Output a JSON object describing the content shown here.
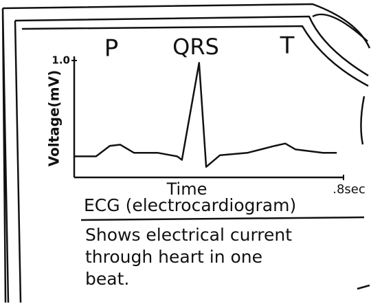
{
  "chart_data": {
    "type": "line",
    "title": "ECG (electrocardiogram)",
    "description": [
      "Shows electrical current",
      "through heart in one",
      "beat."
    ],
    "annotations": [
      "P",
      "QRS",
      "T"
    ],
    "ylabel": "Voltage(mV)",
    "xlabel": "Time",
    "x": [
      0,
      0.065,
      0.106,
      0.137,
      0.178,
      0.249,
      0.306,
      0.32,
      0.371,
      0.392,
      0.433,
      0.514,
      0.596,
      0.627,
      0.657,
      0.739,
      0.78
    ],
    "values": [
      0.18,
      0.18,
      0.27,
      0.28,
      0.21,
      0.21,
      0.18,
      0.15,
      0.98,
      0.09,
      0.19,
      0.21,
      0.27,
      0.29,
      0.24,
      0.21,
      0.21
    ],
    "color": "#111111",
    "xlim": [
      0,
      0.8
    ],
    "ylim": [
      0,
      1.0
    ],
    "xticks": [
      {
        "value": 0.8,
        "label": ".8sec"
      }
    ],
    "yticks": [
      {
        "value": 1,
        "label": "1.0"
      }
    ]
  }
}
